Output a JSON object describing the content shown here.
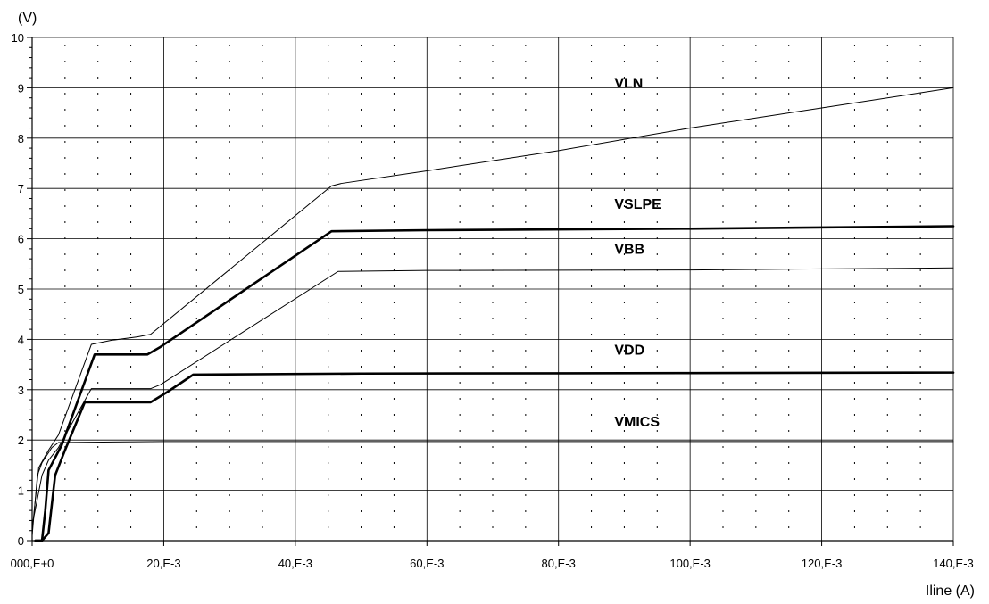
{
  "chart_data": {
    "type": "line",
    "title": "",
    "xlabel": "Iline (A)",
    "ylabel": "(V)",
    "xlim": [
      0,
      0.14
    ],
    "ylim": [
      0,
      10
    ],
    "grid": true,
    "x_ticks": [
      0,
      0.02,
      0.04,
      0.06,
      0.08,
      0.1,
      0.12,
      0.14
    ],
    "x_tick_labels": [
      "000,E+0",
      "20,E-3",
      "40,E-3",
      "60,E-3",
      "80,E-3",
      "100,E-3",
      "120,E-3",
      "140,E-3"
    ],
    "y_ticks": [
      0,
      1,
      2,
      3,
      4,
      5,
      6,
      7,
      8,
      9,
      10
    ],
    "y_tick_labels": [
      "0",
      "1",
      "2",
      "3",
      "4",
      "5",
      "6",
      "7",
      "8",
      "9",
      "10"
    ],
    "series": [
      {
        "name": "VLN",
        "weight": "thin",
        "points": [
          [
            0,
            0.2
          ],
          [
            0.001,
            1.45
          ],
          [
            0.0025,
            1.8
          ],
          [
            0.004,
            2.1
          ],
          [
            0.009,
            3.9
          ],
          [
            0.012,
            3.98
          ],
          [
            0.016,
            4.05
          ],
          [
            0.018,
            4.1
          ],
          [
            0.0455,
            7.05
          ],
          [
            0.047,
            7.1
          ],
          [
            0.06,
            7.35
          ],
          [
            0.08,
            7.75
          ],
          [
            0.1,
            8.2
          ],
          [
            0.12,
            8.6
          ],
          [
            0.14,
            9.0
          ]
        ]
      },
      {
        "name": "VSLPE",
        "weight": "bold",
        "points": [
          [
            0.0005,
            0.0
          ],
          [
            0.0015,
            0.0
          ],
          [
            0.002,
            0.6
          ],
          [
            0.0025,
            1.4
          ],
          [
            0.0035,
            1.65
          ],
          [
            0.0045,
            1.9
          ],
          [
            0.0095,
            3.7
          ],
          [
            0.0175,
            3.7
          ],
          [
            0.0195,
            3.85
          ],
          [
            0.0455,
            6.15
          ],
          [
            0.06,
            6.17
          ],
          [
            0.1,
            6.2
          ],
          [
            0.14,
            6.25
          ]
        ]
      },
      {
        "name": "VBB",
        "weight": "thin",
        "points": [
          [
            0,
            0.3
          ],
          [
            0.0015,
            1.3
          ],
          [
            0.0025,
            1.6
          ],
          [
            0.004,
            1.85
          ],
          [
            0.009,
            3.02
          ],
          [
            0.018,
            3.02
          ],
          [
            0.0195,
            3.1
          ],
          [
            0.0465,
            5.35
          ],
          [
            0.06,
            5.37
          ],
          [
            0.1,
            5.38
          ],
          [
            0.14,
            5.42
          ]
        ]
      },
      {
        "name": "VDD",
        "weight": "bold",
        "points": [
          [
            0.0005,
            0.0
          ],
          [
            0.0015,
            0.0
          ],
          [
            0.0025,
            0.15
          ],
          [
            0.0035,
            1.3
          ],
          [
            0.005,
            1.8
          ],
          [
            0.008,
            2.75
          ],
          [
            0.018,
            2.75
          ],
          [
            0.0205,
            2.95
          ],
          [
            0.0245,
            3.3
          ],
          [
            0.05,
            3.32
          ],
          [
            0.1,
            3.33
          ],
          [
            0.14,
            3.34
          ]
        ]
      },
      {
        "name": "VMICS",
        "weight": "thin",
        "points": [
          [
            0,
            0.1
          ],
          [
            0.0008,
            1.3
          ],
          [
            0.0015,
            1.55
          ],
          [
            0.003,
            1.85
          ],
          [
            0.004,
            1.95
          ],
          [
            0.02,
            1.97
          ],
          [
            0.14,
            1.97
          ]
        ]
      }
    ],
    "annotations": [
      {
        "text": "VLN",
        "x": 0.0885,
        "y": 9.0
      },
      {
        "text": "VSLPE",
        "x": 0.0885,
        "y": 6.6
      },
      {
        "text": "VBB",
        "x": 0.0885,
        "y": 5.7
      },
      {
        "text": "VDD",
        "x": 0.0885,
        "y": 3.7
      },
      {
        "text": "VMICS",
        "x": 0.0885,
        "y": 2.27
      }
    ]
  }
}
